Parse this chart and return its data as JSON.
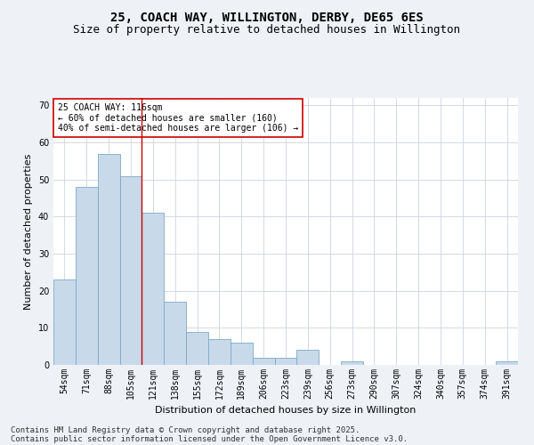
{
  "title_line1": "25, COACH WAY, WILLINGTON, DERBY, DE65 6ES",
  "title_line2": "Size of property relative to detached houses in Willington",
  "xlabel": "Distribution of detached houses by size in Willington",
  "ylabel": "Number of detached properties",
  "categories": [
    "54sqm",
    "71sqm",
    "88sqm",
    "105sqm",
    "121sqm",
    "138sqm",
    "155sqm",
    "172sqm",
    "189sqm",
    "206sqm",
    "223sqm",
    "239sqm",
    "256sqm",
    "273sqm",
    "290sqm",
    "307sqm",
    "324sqm",
    "340sqm",
    "357sqm",
    "374sqm",
    "391sqm"
  ],
  "values": [
    23,
    48,
    57,
    51,
    41,
    17,
    9,
    7,
    6,
    2,
    2,
    4,
    0,
    1,
    0,
    0,
    0,
    0,
    0,
    0,
    1
  ],
  "bar_color": "#c8d9ea",
  "bar_edge_color": "#7baac8",
  "red_line_x": 3.5,
  "annotation_title": "25 COACH WAY: 116sqm",
  "annotation_line1": "← 60% of detached houses are smaller (160)",
  "annotation_line2": "40% of semi-detached houses are larger (106) →",
  "annotation_box_facecolor": "#ffffff",
  "annotation_box_edgecolor": "#cc0000",
  "ylim_max": 72,
  "yticks": [
    0,
    10,
    20,
    30,
    40,
    50,
    60,
    70
  ],
  "footnote_line1": "Contains HM Land Registry data © Crown copyright and database right 2025.",
  "footnote_line2": "Contains public sector information licensed under the Open Government Licence v3.0.",
  "bg_color": "#eef2f7",
  "plot_bg_color": "#ffffff",
  "grid_color": "#ccd5de",
  "title_fontsize": 10,
  "subtitle_fontsize": 9,
  "ylabel_fontsize": 8,
  "xlabel_fontsize": 8,
  "tick_fontsize": 7,
  "ann_fontsize": 7,
  "footnote_fontsize": 6.5
}
